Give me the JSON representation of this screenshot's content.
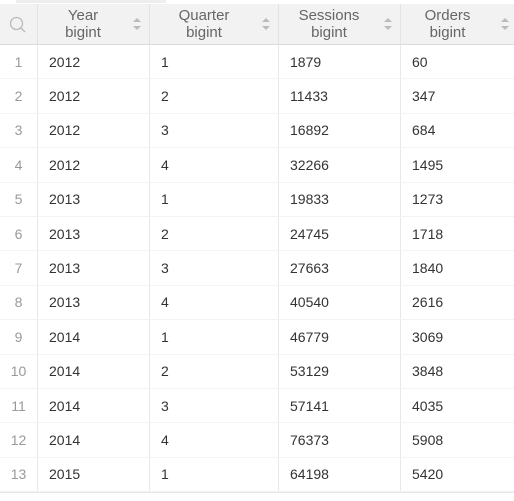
{
  "columns": [
    {
      "name": "Year",
      "type": "bigint"
    },
    {
      "name": "Quarter",
      "type": "bigint"
    },
    {
      "name": "Sessions",
      "type": "bigint"
    },
    {
      "name": "Orders",
      "type": "bigint"
    }
  ],
  "rows": [
    {
      "n": "1",
      "year": "2012",
      "quarter": "1",
      "sessions": "1879",
      "orders": "60"
    },
    {
      "n": "2",
      "year": "2012",
      "quarter": "2",
      "sessions": "11433",
      "orders": "347"
    },
    {
      "n": "3",
      "year": "2012",
      "quarter": "3",
      "sessions": "16892",
      "orders": "684"
    },
    {
      "n": "4",
      "year": "2012",
      "quarter": "4",
      "sessions": "32266",
      "orders": "1495"
    },
    {
      "n": "5",
      "year": "2013",
      "quarter": "1",
      "sessions": "19833",
      "orders": "1273"
    },
    {
      "n": "6",
      "year": "2013",
      "quarter": "2",
      "sessions": "24745",
      "orders": "1718"
    },
    {
      "n": "7",
      "year": "2013",
      "quarter": "3",
      "sessions": "27663",
      "orders": "1840"
    },
    {
      "n": "8",
      "year": "2013",
      "quarter": "4",
      "sessions": "40540",
      "orders": "2616"
    },
    {
      "n": "9",
      "year": "2014",
      "quarter": "1",
      "sessions": "46779",
      "orders": "3069"
    },
    {
      "n": "10",
      "year": "2014",
      "quarter": "2",
      "sessions": "53129",
      "orders": "3848"
    },
    {
      "n": "11",
      "year": "2014",
      "quarter": "3",
      "sessions": "57141",
      "orders": "4035"
    },
    {
      "n": "12",
      "year": "2014",
      "quarter": "4",
      "sessions": "76373",
      "orders": "5908"
    },
    {
      "n": "13",
      "year": "2015",
      "quarter": "1",
      "sessions": "64198",
      "orders": "5420"
    }
  ],
  "icons": {
    "search": "search-icon",
    "sort": "sort-icon"
  },
  "colors": {
    "header_bg": "#f2f2f2",
    "icon": "#bbbbbb",
    "text": "#333333",
    "row_number": "#999999"
  }
}
